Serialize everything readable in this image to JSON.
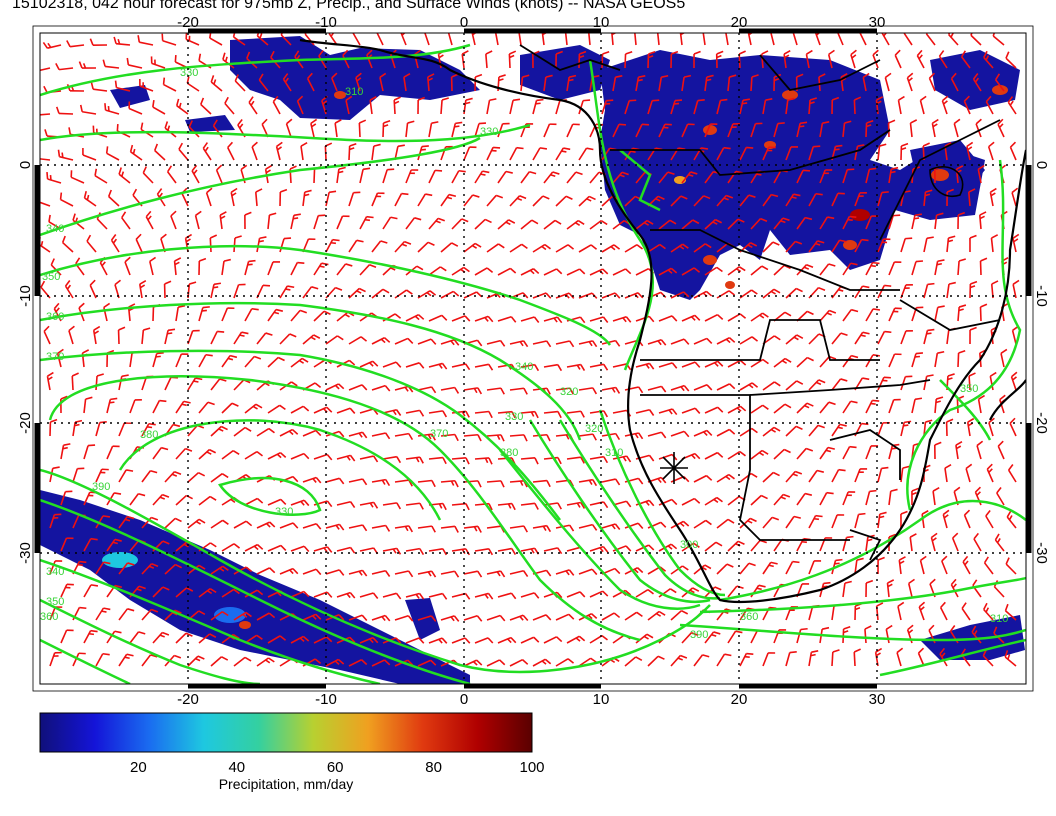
{
  "title": "15102318, 042 hour forecast for 975mb Z, Precip., and Surface Winds (knots) -- NASA GEOS5",
  "map": {
    "lon_range": [
      -30,
      42
    ],
    "lat_range": [
      -40,
      10
    ],
    "lon_ticks": [
      "-20",
      "-10",
      "0",
      "10",
      "20",
      "30"
    ],
    "lat_ticks": [
      "0",
      "-10",
      "-20",
      "-30"
    ],
    "contour_color": "#22dd22",
    "barb_color": "#ee1111",
    "coast_color": "#000000"
  },
  "contour_labels": [
    "330",
    "340",
    "350",
    "360",
    "370",
    "380",
    "390",
    "330",
    "340",
    "350",
    "360",
    "310",
    "320",
    "330",
    "340",
    "370",
    "380",
    "390",
    "360",
    "350",
    "310",
    "300",
    "330",
    "320",
    "310"
  ],
  "marker_label": "Walvis Bay station marker",
  "colorbar": {
    "ticks": [
      "20",
      "40",
      "60",
      "80",
      "100"
    ],
    "range": [
      0,
      100
    ],
    "label": "Precipitation, mm/day",
    "stops": [
      "#10107a",
      "#1414d8",
      "#1a6cf0",
      "#1ec8e0",
      "#34d0a0",
      "#b8d030",
      "#f0a020",
      "#e03a10",
      "#b00000",
      "#5a0000"
    ]
  }
}
